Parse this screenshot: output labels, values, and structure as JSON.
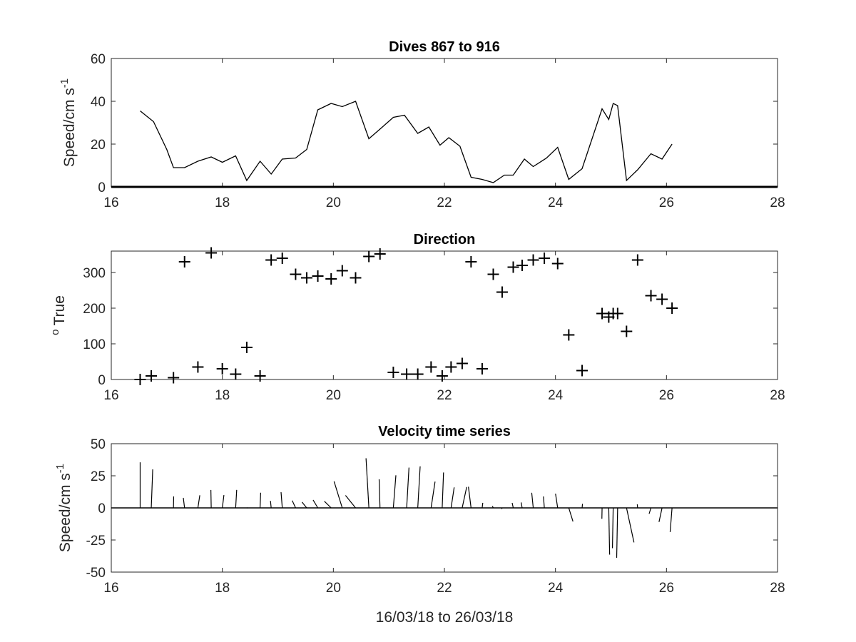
{
  "chart_data": [
    {
      "type": "line",
      "title": "Dives 867 to 916",
      "ylabel": "Speed/cm s",
      "ylabel_superscript": "-1",
      "xlim": [
        16,
        28
      ],
      "ylim": [
        0,
        60
      ],
      "xticks": [
        16,
        18,
        20,
        22,
        24,
        26,
        28
      ],
      "yticks": [
        0,
        20,
        40,
        60
      ],
      "series": [
        {
          "x": [
            16.52,
            16.76,
            17.0,
            17.12,
            17.32,
            17.56,
            17.8,
            18.0,
            18.24,
            18.44,
            18.68,
            18.88,
            19.08,
            19.32,
            19.52,
            19.72,
            19.96,
            20.16,
            20.4,
            20.64,
            20.84,
            21.08,
            21.28,
            21.52,
            21.72,
            21.92,
            22.08,
            22.28,
            22.48,
            22.68,
            22.88,
            23.08,
            23.24,
            23.44,
            23.6,
            23.84,
            24.04,
            24.24,
            24.48,
            24.84,
            24.96,
            25.04,
            25.12,
            25.28,
            25.48,
            25.72,
            25.92,
            26.1
          ],
          "y": [
            35.5,
            30.5,
            17.5,
            9,
            9,
            12,
            14,
            11.5,
            14.5,
            3,
            12,
            6,
            13,
            13.5,
            17.5,
            36,
            39,
            37.5,
            40,
            22.5,
            27,
            32.5,
            33.5,
            25,
            28,
            19.5,
            23,
            19,
            4.5,
            3.5,
            2,
            5.5,
            5.5,
            13,
            9.5,
            13.5,
            18.5,
            3.5,
            8.5,
            36.5,
            31.5,
            39,
            38,
            3,
            8,
            15.5,
            13,
            20
          ]
        }
      ]
    },
    {
      "type": "scatter",
      "title": "Direction",
      "ylabel": "True",
      "ylabel_prefix": "o",
      "xlim": [
        16,
        28
      ],
      "ylim": [
        0,
        360
      ],
      "xticks": [
        16,
        18,
        20,
        22,
        24,
        26,
        28
      ],
      "yticks": [
        0,
        100,
        200,
        300
      ],
      "marker": "+",
      "series": [
        {
          "x": [
            16.52,
            16.72,
            17.12,
            17.32,
            17.56,
            17.8,
            18.0,
            18.24,
            18.44,
            18.68,
            18.88,
            19.08,
            19.32,
            19.52,
            19.72,
            19.96,
            20.16,
            20.4,
            20.64,
            20.84,
            21.08,
            21.32,
            21.52,
            21.76,
            21.96,
            22.12,
            22.32,
            22.48,
            22.68,
            22.88,
            23.04,
            23.24,
            23.4,
            23.6,
            23.8,
            24.04,
            24.24,
            24.48,
            24.84,
            24.96,
            25.04,
            25.12,
            25.28,
            25.48,
            25.72,
            25.92,
            26.1
          ],
          "y": [
            0,
            10,
            5,
            330,
            35,
            355,
            30,
            15,
            90,
            10,
            335,
            340,
            295,
            285,
            290,
            282,
            305,
            285,
            345,
            352,
            20,
            15,
            15,
            35,
            10,
            35,
            45,
            330,
            30,
            295,
            245,
            315,
            320,
            335,
            340,
            325,
            125,
            25,
            185,
            175,
            185,
            185,
            135,
            335,
            235,
            225,
            200
          ]
        }
      ]
    },
    {
      "type": "line",
      "subtype": "stick",
      "title": "Velocity time series",
      "xlabel": "16/03/18 to 26/03/18",
      "ylabel": "Speed/cm s",
      "ylabel_superscript": "-1",
      "xlim": [
        16,
        28
      ],
      "ylim": [
        -50,
        50
      ],
      "xticks": [
        16,
        18,
        20,
        22,
        24,
        26,
        28
      ],
      "yticks": [
        50,
        25,
        0,
        -25,
        -50
      ],
      "ytick_labels": [
        "50",
        "25",
        "0",
        "-25",
        "-50"
      ],
      "series": [
        {
          "x": [
            16.52,
            16.72,
            17.12,
            17.32,
            17.56,
            17.8,
            18.0,
            18.24,
            18.44,
            18.68,
            18.88,
            19.08,
            19.32,
            19.52,
            19.72,
            19.96,
            20.16,
            20.4,
            20.64,
            20.84,
            21.08,
            21.32,
            21.52,
            21.76,
            21.96,
            22.12,
            22.32,
            22.48,
            22.68,
            22.88,
            23.04,
            23.24,
            23.4,
            23.6,
            23.8,
            24.04,
            24.24,
            24.48,
            24.84,
            24.96,
            25.04,
            25.12,
            25.28,
            25.48,
            25.72,
            25.92,
            26.1
          ],
          "speed": [
            35.5,
            30.5,
            9,
            9,
            12,
            14,
            11.5,
            14.5,
            3,
            12,
            6,
            13,
            13.5,
            17.5,
            18,
            25,
            36,
            37.5,
            40,
            22.5,
            27,
            32.5,
            33.5,
            25,
            28,
            19.5,
            23,
            19,
            4.5,
            3.5,
            2,
            5.5,
            5.5,
            13,
            9.5,
            13.5,
            18.5,
            3.5,
            8.5,
            36.5,
            31.5,
            39,
            38,
            3,
            8,
            15.5,
            20
          ],
          "direction_deg": [
            0,
            10,
            5,
            330,
            35,
            355,
            30,
            15,
            90,
            10,
            335,
            340,
            295,
            285,
            290,
            282,
            305,
            285,
            345,
            352,
            20,
            15,
            15,
            35,
            10,
            35,
            45,
            330,
            30,
            295,
            245,
            315,
            320,
            335,
            340,
            325,
            125,
            25,
            185,
            175,
            185,
            185,
            135,
            335,
            235,
            225,
            200
          ]
        }
      ]
    }
  ]
}
